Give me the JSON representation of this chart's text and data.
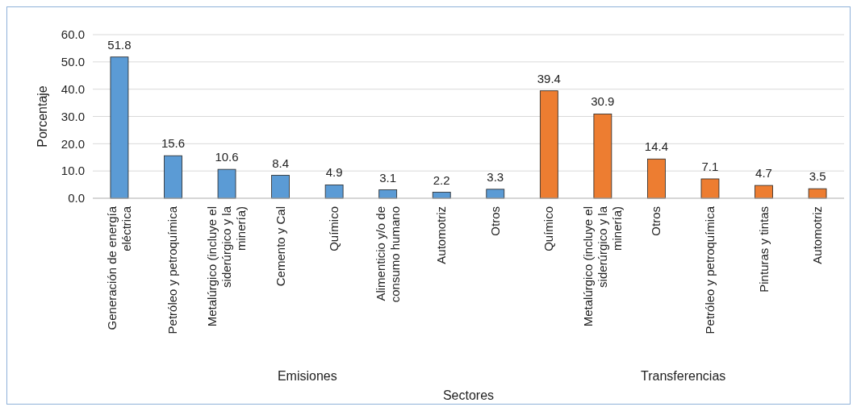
{
  "chart_data": {
    "type": "bar",
    "xlabel": "Sectores",
    "ylabel": "Porcentaje",
    "categories": [
      "Generación de energía eléctrica",
      "Petróleo y petroquímica",
      "Metalúrgico (incluye el siderúrgico y la minería)",
      "Cemento y Cal",
      "Químico",
      "Alimenticio y/o de consumo humano",
      "Automotriz",
      "Otros",
      "Químico",
      "Metalúrgico (incluye el siderúrgico y la minería)",
      "Otros",
      "Petróleo y petroquímica",
      "Pinturas y tintas",
      "Automotriz"
    ],
    "annotations": [
      "Emisiones",
      "Transferencias"
    ],
    "series": [
      {
        "color": "#5b9bd5",
        "values": [
          51.8,
          15.6,
          10.6,
          8.4,
          4.9,
          3.1,
          2.2,
          3.3,
          null,
          null,
          null,
          null,
          null,
          null
        ]
      },
      {
        "color": "#ed7d31",
        "values": [
          null,
          null,
          null,
          null,
          null,
          null,
          null,
          null,
          39.4,
          30.9,
          14.4,
          7.1,
          4.7,
          3.5
        ]
      }
    ],
    "ylim": [
      0,
      60
    ],
    "yticks": [
      {
        "value": 0,
        "label": "0.0"
      },
      {
        "value": 10,
        "label": "10.0"
      },
      {
        "value": 20,
        "label": "20.0"
      },
      {
        "value": 30,
        "label": "30.0"
      },
      {
        "value": 40,
        "label": "40.0"
      },
      {
        "value": 50,
        "label": "50.0"
      },
      {
        "value": 60,
        "label": "60.0"
      }
    ],
    "grid": "y",
    "data_labels": true
  }
}
